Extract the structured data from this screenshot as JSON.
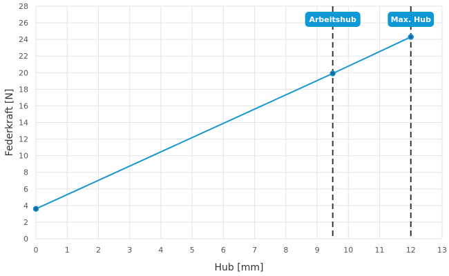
{
  "chart_data": {
    "type": "line",
    "xlabel": "Hub [mm]",
    "ylabel": "Federkraft [N]",
    "xlim": [
      0,
      13
    ],
    "ylim": [
      0,
      28
    ],
    "xticks": [
      0,
      1,
      2,
      3,
      4,
      5,
      6,
      7,
      8,
      9,
      10,
      11,
      12,
      13
    ],
    "yticks": [
      0,
      2,
      4,
      6,
      8,
      10,
      12,
      14,
      16,
      18,
      20,
      22,
      24,
      26,
      28
    ],
    "grid": true,
    "series": [
      {
        "x": [
          0,
          9.5,
          12
        ],
        "y": [
          3.6,
          19.9,
          24.3
        ],
        "color": "#1596d2"
      }
    ],
    "markers": [
      {
        "label": "Arbeitshub",
        "x": 9.5
      },
      {
        "label": "Max. Hub",
        "x": 12
      }
    ],
    "colors": {
      "line": "#1596d2",
      "point": "#146aa0",
      "marker_label_bg": "#0e98d6",
      "marker_line": "#333333"
    }
  }
}
